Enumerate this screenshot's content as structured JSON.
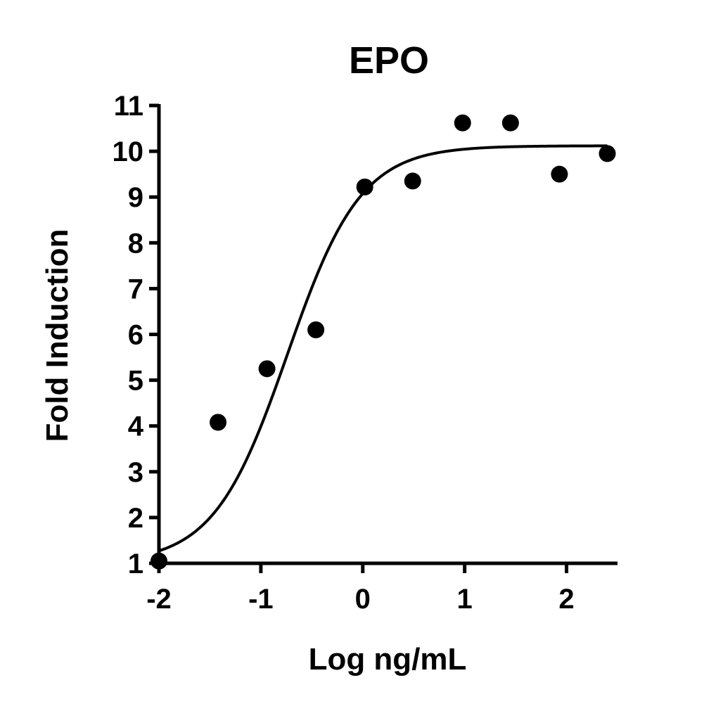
{
  "chart_data": {
    "type": "scatter",
    "title": "EPO",
    "xlabel": "Log ng/mL",
    "ylabel": "Fold Induction",
    "xlim": [
      -2,
      2.5
    ],
    "ylim": [
      1,
      11
    ],
    "xticks": [
      -2,
      -1,
      0,
      1,
      2
    ],
    "yticks": [
      1,
      2,
      3,
      4,
      5,
      6,
      7,
      8,
      9,
      10,
      11
    ],
    "grid": false,
    "legend": "none",
    "series": [
      {
        "points": [
          {
            "x": -2.0,
            "y": 1.05
          },
          {
            "x": -1.42,
            "y": 4.08
          },
          {
            "x": -0.94,
            "y": 5.25
          },
          {
            "x": -0.46,
            "y": 6.1
          },
          {
            "x": 0.02,
            "y": 9.22
          },
          {
            "x": 0.49,
            "y": 9.35
          },
          {
            "x": 0.98,
            "y": 10.62
          },
          {
            "x": 1.45,
            "y": 10.62
          },
          {
            "x": 1.93,
            "y": 9.5
          },
          {
            "x": 2.4,
            "y": 9.95
          }
        ]
      }
    ],
    "fit": {
      "model": "four-parameter logistic",
      "bottom": 1.0,
      "top": 10.12,
      "logEC50": -0.74,
      "hill": 1.2,
      "xrange": [
        -2,
        2.4
      ]
    },
    "colors": {
      "marker": "#000000",
      "line": "#000000",
      "axis": "#000000"
    }
  }
}
